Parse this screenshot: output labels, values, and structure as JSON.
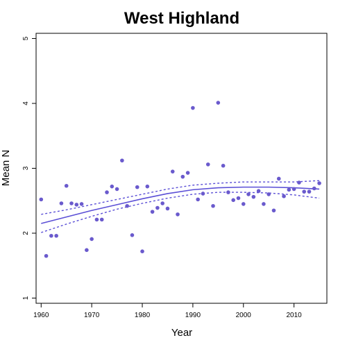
{
  "colors": {
    "points": "#6a5acd",
    "fit": "#5b4fd6",
    "band": "#5b4fd6"
  },
  "chart_data": {
    "type": "scatter",
    "title": "West Highland",
    "xlabel": "Year",
    "ylabel": "Mean N",
    "xlim": [
      1959,
      2016.5
    ],
    "ylim": [
      0.92,
      5.08
    ],
    "x_ticks": [
      1960,
      1970,
      1980,
      1990,
      2000,
      2010
    ],
    "y_ticks": [
      1,
      2,
      3,
      4,
      5
    ],
    "grid": false,
    "legend": "none",
    "series": [
      {
        "values": [
          [
            1960,
            2.52
          ],
          [
            1961,
            1.65
          ],
          [
            1962,
            1.96
          ],
          [
            1963,
            1.96
          ],
          [
            1964,
            2.46
          ],
          [
            1965,
            2.73
          ],
          [
            1966,
            2.46
          ],
          [
            1967,
            2.44
          ],
          [
            1968,
            2.45
          ],
          [
            1969,
            1.74
          ],
          [
            1970,
            1.91
          ],
          [
            1971,
            2.21
          ],
          [
            1972,
            2.21
          ],
          [
            1973,
            2.63
          ],
          [
            1974,
            2.72
          ],
          [
            1975,
            2.68
          ],
          [
            1976,
            3.12
          ],
          [
            1977,
            2.42
          ],
          [
            1978,
            1.97
          ],
          [
            1979,
            2.71
          ],
          [
            1980,
            1.72
          ],
          [
            1981,
            2.72
          ],
          [
            1982,
            2.33
          ],
          [
            1983,
            2.39
          ],
          [
            1984,
            2.46
          ],
          [
            1985,
            2.38
          ],
          [
            1986,
            2.95
          ],
          [
            1987,
            2.29
          ],
          [
            1988,
            2.87
          ],
          [
            1989,
            2.93
          ],
          [
            1990,
            3.93
          ],
          [
            1991,
            2.52
          ],
          [
            1992,
            2.61
          ],
          [
            1993,
            3.06
          ],
          [
            1994,
            2.42
          ],
          [
            1995,
            4.01
          ],
          [
            1996,
            3.04
          ],
          [
            1997,
            2.63
          ],
          [
            1998,
            2.51
          ],
          [
            1999,
            2.54
          ],
          [
            2000,
            2.45
          ],
          [
            2001,
            2.6
          ],
          [
            2002,
            2.56
          ],
          [
            2003,
            2.65
          ],
          [
            2004,
            2.45
          ],
          [
            2005,
            2.6
          ],
          [
            2006,
            2.35
          ],
          [
            2007,
            2.84
          ],
          [
            2008,
            2.57
          ],
          [
            2009,
            2.67
          ],
          [
            2010,
            2.68
          ],
          [
            2011,
            2.78
          ],
          [
            2012,
            2.64
          ],
          [
            2013,
            2.64
          ],
          [
            2014,
            2.69
          ],
          [
            2015,
            2.77
          ]
        ]
      }
    ],
    "fit": {
      "x": [
        1960,
        1965,
        1970,
        1975,
        1980,
        1985,
        1990,
        1995,
        2000,
        2005,
        2010,
        2015
      ],
      "y": [
        2.15,
        2.25,
        2.35,
        2.44,
        2.53,
        2.61,
        2.67,
        2.7,
        2.71,
        2.71,
        2.7,
        2.68
      ],
      "lower": [
        2.01,
        2.14,
        2.26,
        2.37,
        2.46,
        2.54,
        2.6,
        2.63,
        2.63,
        2.62,
        2.59,
        2.54
      ],
      "upper": [
        2.29,
        2.36,
        2.44,
        2.52,
        2.6,
        2.68,
        2.74,
        2.77,
        2.79,
        2.79,
        2.79,
        2.81
      ]
    }
  }
}
